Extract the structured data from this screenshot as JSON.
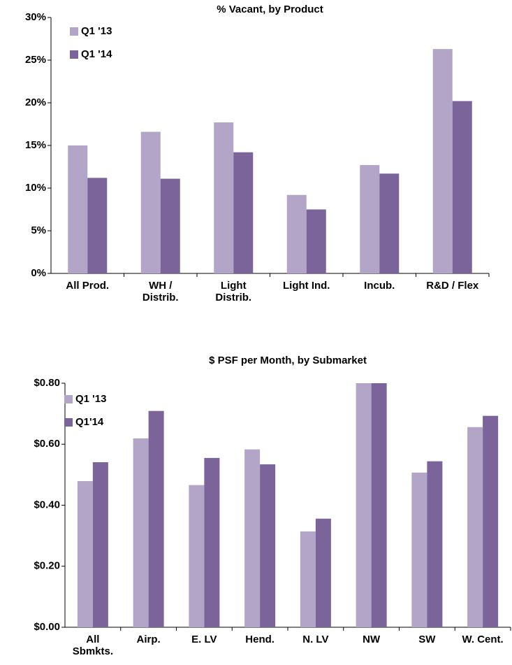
{
  "chart_data": [
    {
      "type": "bar",
      "title": "% Vacant, by Product",
      "categories": [
        [
          "All Prod."
        ],
        [
          "WH /",
          "Distrib."
        ],
        [
          "Light",
          "Distrib."
        ],
        [
          "Light Ind."
        ],
        [
          "Incub."
        ],
        [
          "R&D / Flex"
        ]
      ],
      "series": [
        {
          "name": "Q1 '13",
          "color": "#b2a5c8",
          "values": [
            15.0,
            16.6,
            17.7,
            9.2,
            12.7,
            26.3
          ]
        },
        {
          "name": "Q1 '14",
          "color": "#7b6499",
          "values": [
            11.2,
            11.1,
            14.2,
            7.5,
            11.7,
            20.2
          ]
        }
      ],
      "ylim": [
        0,
        30
      ],
      "yticks": [
        {
          "value": 0,
          "label": "0%"
        },
        {
          "value": 5,
          "label": "5%"
        },
        {
          "value": 10,
          "label": "10%"
        },
        {
          "value": 15,
          "label": "15%"
        },
        {
          "value": 20,
          "label": "20%"
        },
        {
          "value": 25,
          "label": "25%"
        },
        {
          "value": 30,
          "label": "30%"
        }
      ],
      "legend": "upper left",
      "grid": false
    },
    {
      "type": "bar",
      "title": "$ PSF per Month, by Submarket",
      "categories": [
        [
          "All",
          "Sbmkts."
        ],
        [
          "Airp."
        ],
        [
          "E. LV"
        ],
        [
          "Hend."
        ],
        [
          "N. LV"
        ],
        [
          "NW"
        ],
        [
          "SW"
        ],
        [
          "W. Cent."
        ]
      ],
      "series": [
        {
          "name": "Q1 '13",
          "color": "#b2a5c8",
          "values": [
            0.479,
            0.619,
            0.466,
            0.583,
            0.314,
            0.8,
            0.507,
            0.656
          ]
        },
        {
          "name": "Q1'14",
          "color": "#7b6499",
          "values": [
            0.541,
            0.709,
            0.555,
            0.534,
            0.356,
            0.8,
            0.544,
            0.693
          ]
        }
      ],
      "ylim": [
        0,
        0.8
      ],
      "yticks": [
        {
          "value": 0,
          "label": "$0.00"
        },
        {
          "value": 0.2,
          "label": "$0.20"
        },
        {
          "value": 0.4,
          "label": "$0.40"
        },
        {
          "value": 0.6,
          "label": "$0.60"
        },
        {
          "value": 0.8,
          "label": "$0.80"
        }
      ],
      "legend": "upper left",
      "grid": false
    }
  ]
}
